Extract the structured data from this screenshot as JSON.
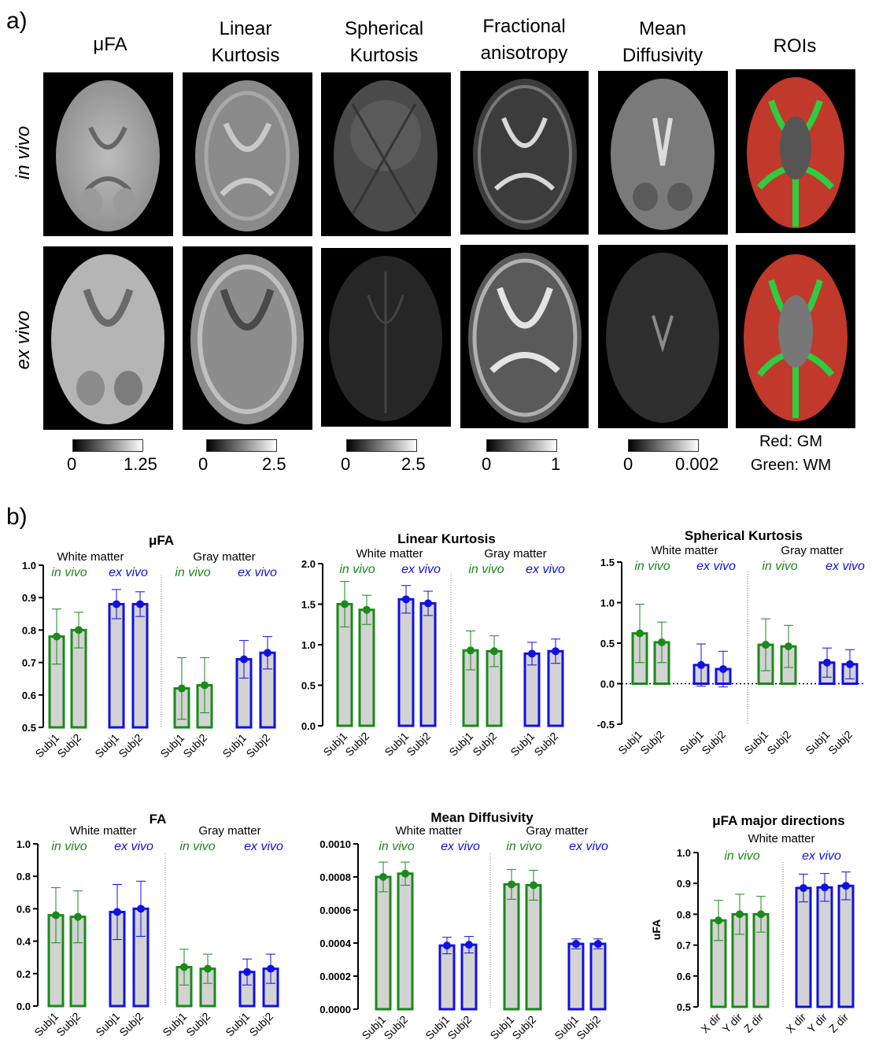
{
  "panel_a_label": "a)",
  "panel_b_label": "b)",
  "columns": [
    {
      "title": "μFA",
      "cbar_min": "0",
      "cbar_max": "1.25"
    },
    {
      "title": "Linear\nKurtosis",
      "cbar_min": "0",
      "cbar_max": "2.5"
    },
    {
      "title": "Spherical\nKurtosis",
      "cbar_min": "0",
      "cbar_max": "2.5"
    },
    {
      "title": "Fractional\nanisotropy",
      "cbar_min": "0",
      "cbar_max": "1"
    },
    {
      "title": "Mean\nDiffusivity",
      "cbar_min": "0",
      "cbar_max": "0.002"
    },
    {
      "title": "ROIs"
    }
  ],
  "rows": [
    {
      "label": "in vivo"
    },
    {
      "label": "ex vivo"
    }
  ],
  "roi_legend": {
    "red": "Red: GM",
    "green": "Green: WM"
  },
  "colors": {
    "green": "#1a8a1a",
    "blue": "#1010e0",
    "bar_fill": "#d3d3d3",
    "roi_red": "#c0392b",
    "roi_green": "#2ecc40"
  },
  "chart_data": [
    {
      "type": "bar",
      "title": "μFA",
      "groups": [
        "White matter",
        "Gray matter"
      ],
      "conditions": [
        "in vivo",
        "ex vivo"
      ],
      "categories": [
        "Subj1",
        "Subj2",
        "Subj1",
        "Subj2",
        "Subj1",
        "Subj2",
        "Subj1",
        "Subj2"
      ],
      "values": [
        0.78,
        0.8,
        0.88,
        0.88,
        0.62,
        0.63,
        0.71,
        0.73
      ],
      "errors": [
        0.085,
        0.055,
        0.045,
        0.038,
        0.095,
        0.085,
        0.058,
        0.05
      ],
      "series_colors": [
        "green",
        "green",
        "blue",
        "blue",
        "green",
        "green",
        "blue",
        "blue"
      ],
      "ylim": [
        0.5,
        1.0
      ],
      "yticks": [
        "0.5",
        "0.6",
        "0.7",
        "0.8",
        "0.9",
        "1.0"
      ]
    },
    {
      "type": "bar",
      "title": "Linear Kurtosis",
      "groups": [
        "White matter",
        "Gray matter"
      ],
      "conditions": [
        "in vivo",
        "ex vivo"
      ],
      "categories": [
        "Subj1",
        "Subj2",
        "Subj1",
        "Subj2",
        "Subj1",
        "Subj2",
        "Subj1",
        "Subj2"
      ],
      "values": [
        1.5,
        1.43,
        1.56,
        1.51,
        0.93,
        0.92,
        0.89,
        0.92
      ],
      "errors": [
        0.28,
        0.18,
        0.17,
        0.15,
        0.24,
        0.19,
        0.14,
        0.15
      ],
      "series_colors": [
        "green",
        "green",
        "blue",
        "blue",
        "green",
        "green",
        "blue",
        "blue"
      ],
      "ylim": [
        0.0,
        2.0
      ],
      "yticks": [
        "0.0",
        "0.5",
        "1.0",
        "1.5",
        "2.0"
      ]
    },
    {
      "type": "bar",
      "title": "Spherical Kurtosis",
      "groups": [
        "White matter",
        "Gray matter"
      ],
      "conditions": [
        "in vivo",
        "ex vivo"
      ],
      "categories": [
        "Subj1",
        "Subj2",
        "Subj1",
        "Subj2",
        "Subj1",
        "Subj2",
        "Subj1",
        "Subj2"
      ],
      "values": [
        0.62,
        0.51,
        0.23,
        0.18,
        0.48,
        0.46,
        0.26,
        0.24
      ],
      "errors": [
        0.36,
        0.25,
        0.26,
        0.22,
        0.32,
        0.26,
        0.18,
        0.18
      ],
      "series_colors": [
        "green",
        "green",
        "blue",
        "blue",
        "green",
        "green",
        "blue",
        "blue"
      ],
      "ylim": [
        -0.5,
        1.5
      ],
      "yticks": [
        "-0.5",
        "0.0",
        "0.5",
        "1.0",
        "1.5"
      ],
      "zero_line": true
    },
    {
      "type": "bar",
      "title": "FA",
      "groups": [
        "White matter",
        "Gray matter"
      ],
      "conditions": [
        "in vivo",
        "ex vivo"
      ],
      "categories": [
        "Subj1",
        "Subj2",
        "Subj1",
        "Subj2",
        "Subj1",
        "Subj2",
        "Subj1",
        "Subj2"
      ],
      "values": [
        0.56,
        0.55,
        0.58,
        0.6,
        0.24,
        0.23,
        0.21,
        0.23
      ],
      "errors": [
        0.17,
        0.16,
        0.17,
        0.17,
        0.11,
        0.09,
        0.08,
        0.09
      ],
      "series_colors": [
        "green",
        "green",
        "blue",
        "blue",
        "green",
        "green",
        "blue",
        "blue"
      ],
      "ylim": [
        0.0,
        1.0
      ],
      "yticks": [
        "0.0",
        "0.2",
        "0.4",
        "0.6",
        "0.8",
        "1.0"
      ]
    },
    {
      "type": "bar",
      "title": "Mean Diffusivity",
      "groups": [
        "White matter",
        "Gray matter"
      ],
      "conditions": [
        "in vivo",
        "ex vivo"
      ],
      "categories": [
        "Subj1",
        "Subj2",
        "Subj1",
        "Subj2",
        "Subj1",
        "Subj2",
        "Subj1",
        "Subj2"
      ],
      "values": [
        0.0008,
        0.00082,
        0.000385,
        0.00039,
        0.000755,
        0.00075,
        0.000395,
        0.000395
      ],
      "errors": [
        9e-05,
        7e-05,
        5e-05,
        5e-05,
        9e-05,
        9e-05,
        3e-05,
        3e-05
      ],
      "series_colors": [
        "green",
        "green",
        "blue",
        "blue",
        "green",
        "green",
        "blue",
        "blue"
      ],
      "ylim": [
        0.0,
        0.001
      ],
      "yticks": [
        "0.0000",
        "0.0002",
        "0.0004",
        "0.0006",
        "0.0008",
        "0.0010"
      ]
    },
    {
      "type": "bar",
      "title": "μFA major directions",
      "groups": [
        "White matter"
      ],
      "conditions": [
        "in vivo",
        "ex vivo"
      ],
      "categories": [
        "X dir",
        "Y dir",
        "Z dir",
        "X dir",
        "Y dir",
        "Z dir"
      ],
      "values": [
        0.78,
        0.8,
        0.8,
        0.885,
        0.887,
        0.892
      ],
      "errors": [
        0.065,
        0.065,
        0.058,
        0.045,
        0.045,
        0.045
      ],
      "series_colors": [
        "green",
        "green",
        "green",
        "blue",
        "blue",
        "blue"
      ],
      "ylim": [
        0.5,
        1.0
      ],
      "yticks": [
        "0.5",
        "0.6",
        "0.7",
        "0.8",
        "0.9",
        "1.0"
      ],
      "ylabel": "uFA"
    }
  ]
}
